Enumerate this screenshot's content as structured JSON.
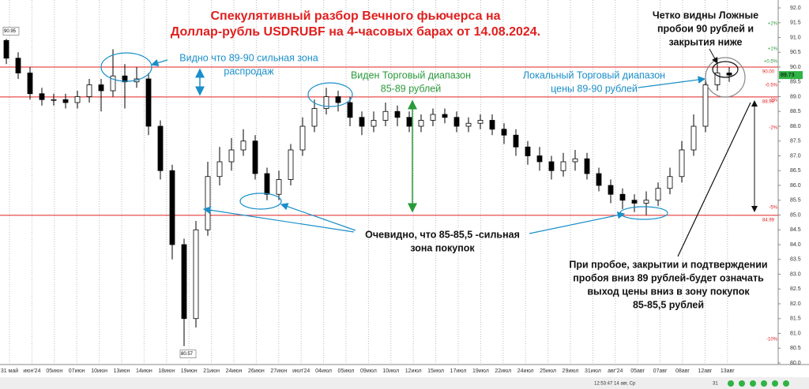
{
  "chart_data": {
    "type": "candlestick",
    "title_lines": [
      "Спекулятивный разбор Вечного фьючерса на",
      "Доллар-рубль USDRUBF на 4-часовых барах от 14.08.2024."
    ],
    "xtick_labels": [
      "31 май",
      "июн'24",
      "05июн",
      "07июн",
      "10июн",
      "13июн",
      "14июн",
      "18июн",
      "19июн",
      "21июн",
      "24июн",
      "26июн",
      "27июн",
      "июл'24",
      "04июл",
      "05июл",
      "09июл",
      "10июл",
      "12июл",
      "15июл",
      "17июл",
      "19июл",
      "22июл",
      "24июл",
      "25июл",
      "29июл",
      "31июл",
      "авг'24",
      "05авг",
      "07авг",
      "08авг",
      "12авг",
      "13авг"
    ],
    "open": [
      90.9,
      90.3,
      89.8,
      89.1,
      88.9,
      88.9,
      88.8,
      89.0,
      89.4,
      89.2,
      89.7,
      89.5,
      89.6,
      88.0,
      86.5,
      84.0,
      81.5,
      84.5,
      86.3,
      86.8,
      87.2,
      87.5,
      86.4,
      85.7,
      86.2,
      87.2,
      88.0,
      88.6,
      89.0,
      88.8,
      88.3,
      88.0,
      88.2,
      88.5,
      88.3,
      88.0,
      88.2,
      88.4,
      88.3,
      88.0,
      88.1,
      88.2,
      87.9,
      87.7,
      87.3,
      87.0,
      86.8,
      86.5,
      86.8,
      86.9,
      86.4,
      86.0,
      85.7,
      85.5,
      85.4,
      85.5,
      85.9,
      86.3,
      87.2,
      88.0,
      89.4,
      89.8
    ],
    "high": [
      90.95,
      90.5,
      90.0,
      89.3,
      89.1,
      89.1,
      89.2,
      89.6,
      89.6,
      90.6,
      90.1,
      90.0,
      89.8,
      88.2,
      86.7,
      84.2,
      84.8,
      86.8,
      87.3,
      87.6,
      87.9,
      87.7,
      86.6,
      86.5,
      87.4,
      88.3,
      88.9,
      89.3,
      89.2,
      89.0,
      88.5,
      88.5,
      88.8,
      88.7,
      88.5,
      88.4,
      88.6,
      88.6,
      88.5,
      88.3,
      88.4,
      88.4,
      88.1,
      87.9,
      87.5,
      87.3,
      87.0,
      87.1,
      87.2,
      87.1,
      86.6,
      86.2,
      85.9,
      85.7,
      85.8,
      86.1,
      86.6,
      87.5,
      88.4,
      89.7,
      90.1,
      90.0
    ],
    "low": [
      90.1,
      89.6,
      88.9,
      88.7,
      88.7,
      88.6,
      88.6,
      88.8,
      88.5,
      89.0,
      88.6,
      89.3,
      87.7,
      86.2,
      83.5,
      80.57,
      81.2,
      84.3,
      86.0,
      86.5,
      87.0,
      86.2,
      85.5,
      85.5,
      86.0,
      87.0,
      87.8,
      88.4,
      88.5,
      88.0,
      87.7,
      87.8,
      88.0,
      88.0,
      87.8,
      87.8,
      88.0,
      88.1,
      87.8,
      87.8,
      87.9,
      87.7,
      87.4,
      87.0,
      86.7,
      86.5,
      86.2,
      86.3,
      86.5,
      86.2,
      85.8,
      85.4,
      85.2,
      85.1,
      85.0,
      85.3,
      85.7,
      86.1,
      87.0,
      87.8,
      89.2,
      89.5
    ],
    "close": [
      90.3,
      89.8,
      89.1,
      88.9,
      88.9,
      88.8,
      89.0,
      89.4,
      89.2,
      89.7,
      89.5,
      89.6,
      88.0,
      86.5,
      84.0,
      81.5,
      84.5,
      86.3,
      86.8,
      87.2,
      87.5,
      86.4,
      85.7,
      86.2,
      87.2,
      88.0,
      88.6,
      89.0,
      88.8,
      88.3,
      88.0,
      88.2,
      88.5,
      88.3,
      88.0,
      88.2,
      88.4,
      88.3,
      88.0,
      88.1,
      88.2,
      87.9,
      87.7,
      87.3,
      87.0,
      86.8,
      86.5,
      86.8,
      86.9,
      86.4,
      86.0,
      85.7,
      85.5,
      85.4,
      85.5,
      85.9,
      86.3,
      87.2,
      88.0,
      89.4,
      89.8,
      89.73
    ],
    "up_color": "#ffffff",
    "down_color": "#000000",
    "ylim": [
      80.0,
      92.0
    ],
    "yticks": [
      {
        "value": 92.0,
        "label": "92.0"
      },
      {
        "value": 91.5,
        "label": "91.5"
      },
      {
        "value": 91.0,
        "label": "91.0"
      },
      {
        "value": 90.5,
        "label": "90.5"
      },
      {
        "value": 90.0,
        "label": "90.0"
      },
      {
        "value": 89.5,
        "label": "89.5"
      },
      {
        "value": 89.0,
        "label": "89.0"
      },
      {
        "value": 88.5,
        "label": "88.5"
      },
      {
        "value": 88.0,
        "label": "88.0"
      },
      {
        "value": 87.5,
        "label": "87.5"
      },
      {
        "value": 87.0,
        "label": "87.0"
      },
      {
        "value": 86.5,
        "label": "86.5"
      },
      {
        "value": 86.0,
        "label": "86.0"
      },
      {
        "value": 85.5,
        "label": "85.5"
      },
      {
        "value": 85.0,
        "label": "85.0"
      },
      {
        "value": 84.5,
        "label": "84.5"
      },
      {
        "value": 84.0,
        "label": "84.0"
      },
      {
        "value": 83.5,
        "label": "83.5"
      },
      {
        "value": 83.0,
        "label": "83.0"
      },
      {
        "value": 82.5,
        "label": "82.5"
      },
      {
        "value": 82.0,
        "label": "82.0"
      },
      {
        "value": 81.5,
        "label": "81.5"
      },
      {
        "value": 81.0,
        "label": "81.0"
      },
      {
        "value": 80.5,
        "label": "80.5"
      },
      {
        "value": 80.0,
        "label": "80.0"
      }
    ],
    "levels": [
      90.0,
      88.99,
      84.99
    ],
    "level_labels": [
      "90.00",
      "88.99",
      "84.99"
    ],
    "level_color": "#e02020",
    "last": 89.73,
    "last_label": "89.73",
    "high_label": "90.95",
    "low_label": "80.57",
    "percent_labels": [
      "+2%",
      "+1%",
      "+0.5%",
      "-0.5%",
      "-1%",
      "-2%",
      "-5%",
      "-10%"
    ],
    "annotations": [
      {
        "lines": [
          "Видно что 89-90 сильная зона",
          "распродаж"
        ],
        "color": "#1a8fc9"
      },
      {
        "lines": [
          "Виден Торговый диапазон",
          "85-89 рублей"
        ],
        "color": "#2a9a3a"
      },
      {
        "lines": [
          "Локальный Торговый диапазон",
          "цены 89-90 рублей"
        ],
        "color": "#1a8fc9"
      },
      {
        "lines": [
          "Четко видны Ложные",
          "пробои 90 рублей и",
          "закрытия ниже"
        ],
        "color": "#111111"
      },
      {
        "lines": [
          "Очевидно, что 85-85,5 -сильная",
          "зона покупок"
        ],
        "color": "#111111"
      },
      {
        "lines": [
          "При пробое, закрытии и подтверждении",
          "пробоя вниз 89 рублей-будет означать",
          "выход цены вниз в зону покупок",
          "85-85,5 рублей"
        ],
        "color": "#111111"
      }
    ],
    "status": [
      "12:53:47 14 авг, Ср",
      "31"
    ]
  }
}
